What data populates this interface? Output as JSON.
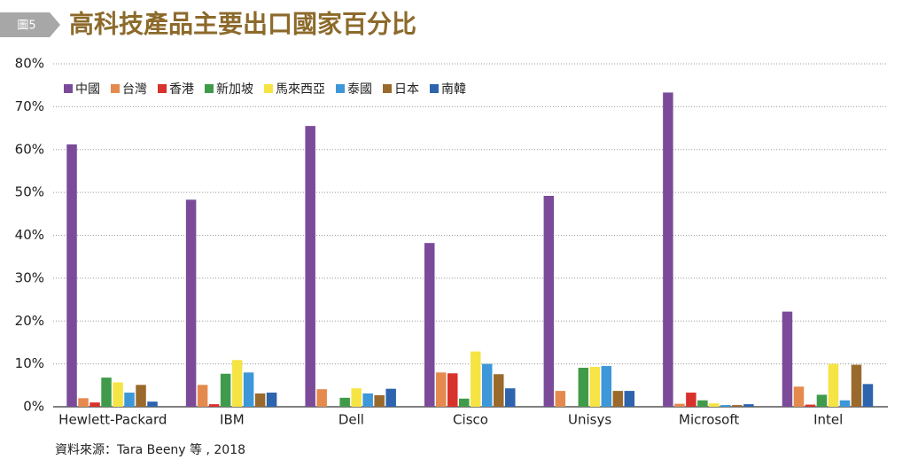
{
  "chart_data": {
    "type": "bar",
    "figure_label": "圖5",
    "title": "高科技產品主要出口國家百分比",
    "source": "資料來源：Tara Beeny 等 , 2018",
    "categories": [
      "Hewlett-Packard",
      "IBM",
      "Dell",
      "Cisco",
      "Unisys",
      "Microsoft",
      "Intel"
    ],
    "series": [
      {
        "name": "中國",
        "color": "#7b4b9a",
        "values": [
          61.2,
          48.3,
          65.5,
          38.2,
          49.2,
          73.3,
          22.2
        ]
      },
      {
        "name": "台灣",
        "color": "#e58a4e",
        "values": [
          2,
          5.1,
          4.1,
          8,
          3.7,
          0.7,
          4.7
        ]
      },
      {
        "name": "香港",
        "color": "#d8322c",
        "values": [
          1,
          0.6,
          0,
          7.8,
          0,
          3.3,
          0.5
        ]
      },
      {
        "name": "新加坡",
        "color": "#3f9b4a",
        "values": [
          6.8,
          7.7,
          2.1,
          1.9,
          9.1,
          1.5,
          2.8
        ]
      },
      {
        "name": "馬來西亞",
        "color": "#f5e444",
        "values": [
          5.7,
          10.9,
          4.3,
          12.9,
          9.3,
          0.8,
          10
        ]
      },
      {
        "name": "泰國",
        "color": "#3d97d8",
        "values": [
          3.3,
          8,
          3.1,
          10,
          9.5,
          0.4,
          1.5
        ]
      },
      {
        "name": "日本",
        "color": "#9a6a2c",
        "values": [
          5.1,
          3.1,
          2.7,
          7.6,
          3.7,
          0.4,
          9.8
        ]
      },
      {
        "name": "南韓",
        "color": "#2e63ae",
        "values": [
          1.2,
          3.3,
          4.2,
          4.3,
          3.7,
          0.6,
          5.3
        ]
      }
    ],
    "ylim": [
      0,
      80
    ],
    "yticks": [
      {
        "value": 0,
        "label": "0%"
      },
      {
        "value": 10,
        "label": "10%"
      },
      {
        "value": 20,
        "label": "20%"
      },
      {
        "value": 30,
        "label": "30%"
      },
      {
        "value": 40,
        "label": "40%"
      },
      {
        "value": 50,
        "label": "50%"
      },
      {
        "value": 60,
        "label": "60%"
      },
      {
        "value": 70,
        "label": "70%"
      },
      {
        "value": 80,
        "label": "80%"
      }
    ],
    "grid": true,
    "legend": "top-left"
  }
}
